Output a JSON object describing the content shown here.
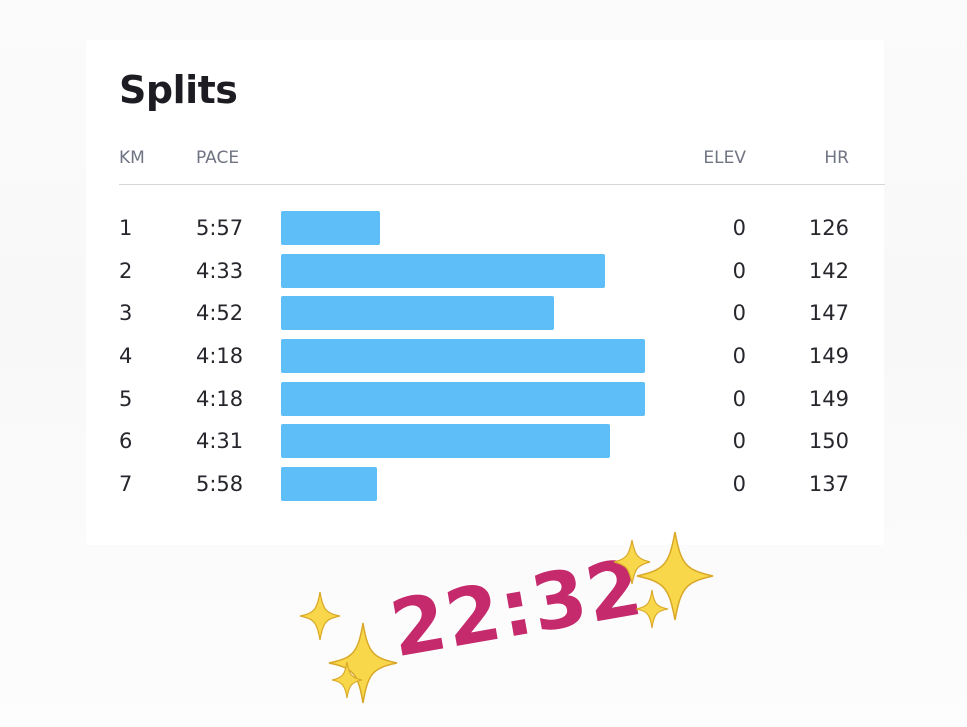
{
  "splits": {
    "title": "Splits",
    "headers": {
      "km": "KM",
      "pace": "PACE",
      "elev": "ELEV",
      "hr": "HR"
    },
    "bar_color": "#5ebef8",
    "rows": [
      {
        "km": "1",
        "pace": "5:57",
        "elev": "0",
        "hr": "126"
      },
      {
        "km": "2",
        "pace": "4:33",
        "elev": "0",
        "hr": "142"
      },
      {
        "km": "3",
        "pace": "4:52",
        "elev": "0",
        "hr": "147"
      },
      {
        "km": "4",
        "pace": "4:18",
        "elev": "0",
        "hr": "149"
      },
      {
        "km": "5",
        "pace": "4:18",
        "elev": "0",
        "hr": "149"
      },
      {
        "km": "6",
        "pace": "4:31",
        "elev": "0",
        "hr": "150"
      },
      {
        "km": "7",
        "pace": "5:58",
        "elev": "0",
        "hr": "137"
      }
    ]
  },
  "sticker": {
    "total_time": "22:32",
    "time_color": "#c42a6c",
    "icon": "sparkles-icon"
  }
}
